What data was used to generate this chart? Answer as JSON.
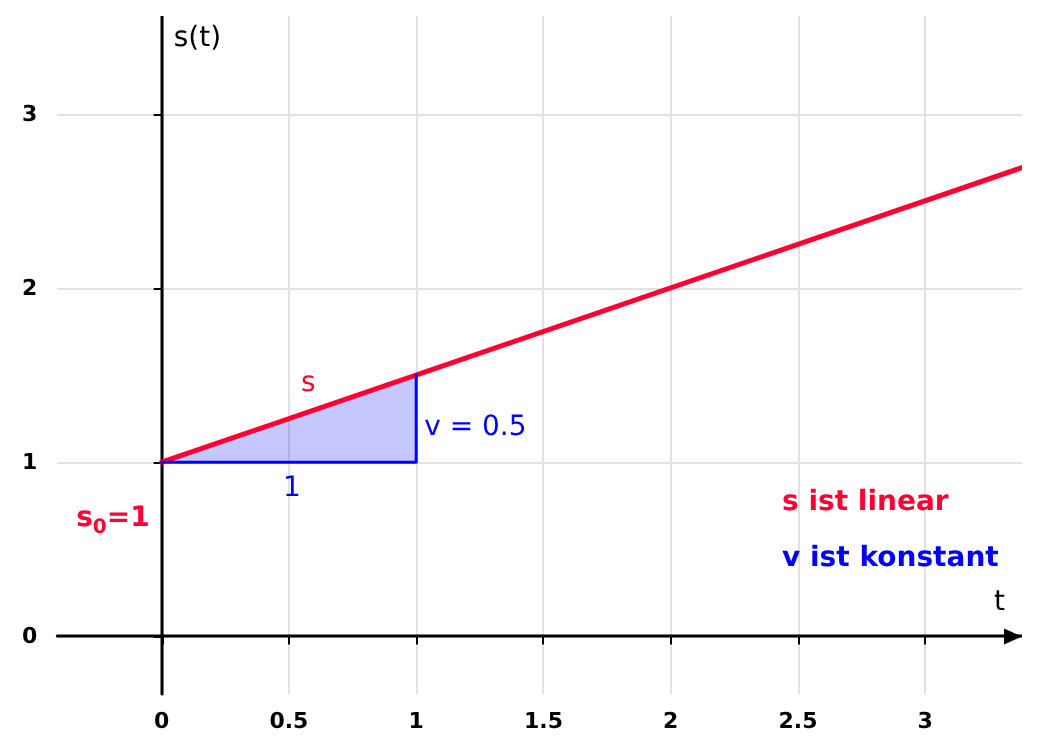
{
  "chart_data": {
    "type": "line",
    "xlabel": "t",
    "ylabel": "s(t)",
    "xlim": [
      -0.41,
      3.38
    ],
    "ylim": [
      -0.33,
      3.56
    ],
    "xticks": [
      0,
      0.5,
      1,
      1.5,
      2,
      2.5,
      3
    ],
    "yticks": [
      0,
      1,
      2,
      3
    ],
    "grid": true,
    "marker": "none",
    "line_style": "solid",
    "series": [
      {
        "color": "#ff0033",
        "x": [
          0,
          3.38
        ],
        "values": [
          1,
          2.69
        ]
      },
      {
        "color": "#0000ff",
        "x": [
          0,
          1,
          1
        ],
        "values": [
          1,
          1,
          1.5
        ],
        "lower": [
          1,
          1,
          1
        ],
        "upper": [
          1,
          1.5,
          1.5
        ]
      }
    ],
    "annotations": [
      {
        "text": "s",
        "x": 0.5,
        "y": 1.25
      },
      {
        "text": "v = 0.5",
        "x": 1,
        "y": 1.25
      },
      {
        "text": "1",
        "x": 0.5,
        "y": 1
      },
      {
        "text": "s$_{0}$=1",
        "x": 0,
        "y": 1
      },
      "s ist linear",
      "v ist konstant"
    ]
  }
}
